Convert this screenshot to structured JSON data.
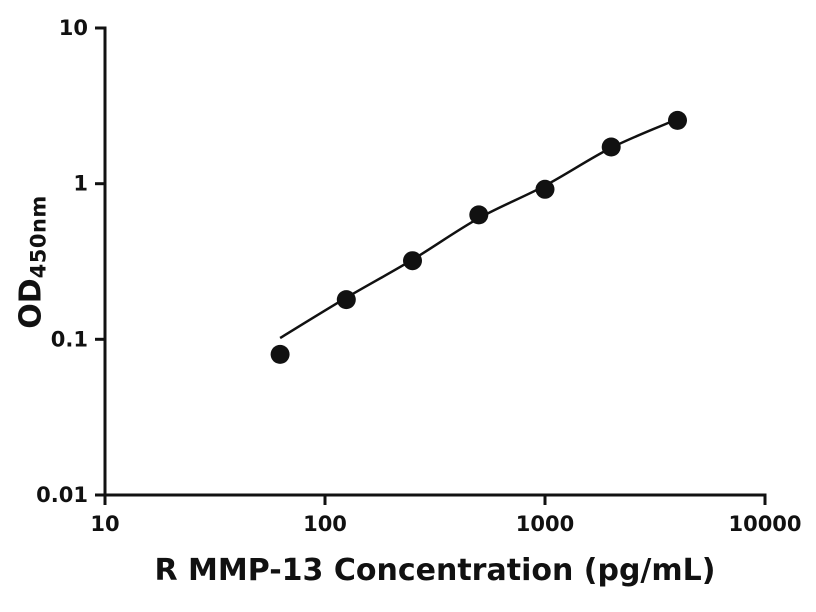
{
  "chart_data": {
    "type": "scatter",
    "title": "",
    "xlabel": "R MMP-13 Concentration (pg/mL)",
    "ylabel_main": "OD",
    "ylabel_sub": "450nm",
    "x": [
      62.5,
      125,
      250,
      500,
      1000,
      2000,
      4000
    ],
    "y": [
      0.08,
      0.18,
      0.32,
      0.63,
      0.92,
      1.72,
      2.55
    ],
    "fit_curve": [
      [
        62.5,
        0.102
      ],
      [
        125,
        0.185
      ],
      [
        250,
        0.325
      ],
      [
        500,
        0.6
      ],
      [
        1000,
        0.97
      ],
      [
        2000,
        1.7
      ],
      [
        4000,
        2.6
      ]
    ],
    "xscale": "log",
    "yscale": "log",
    "xlim": [
      10,
      10000
    ],
    "ylim": [
      0.01,
      10
    ],
    "x_ticks": [
      10,
      100,
      1000,
      10000
    ],
    "x_tick_labels": [
      "10",
      "100",
      "1000",
      "10000"
    ],
    "y_ticks": [
      0.01,
      0.1,
      1,
      10
    ],
    "y_tick_labels": [
      "0.01",
      "0.1",
      "1",
      "10"
    ],
    "grid": false,
    "legend": false,
    "background_color": "#ffffff",
    "axis_color": "#111111",
    "line_color": "#111111",
    "marker_color": "#111111",
    "marker_shape": "filled-circle"
  }
}
